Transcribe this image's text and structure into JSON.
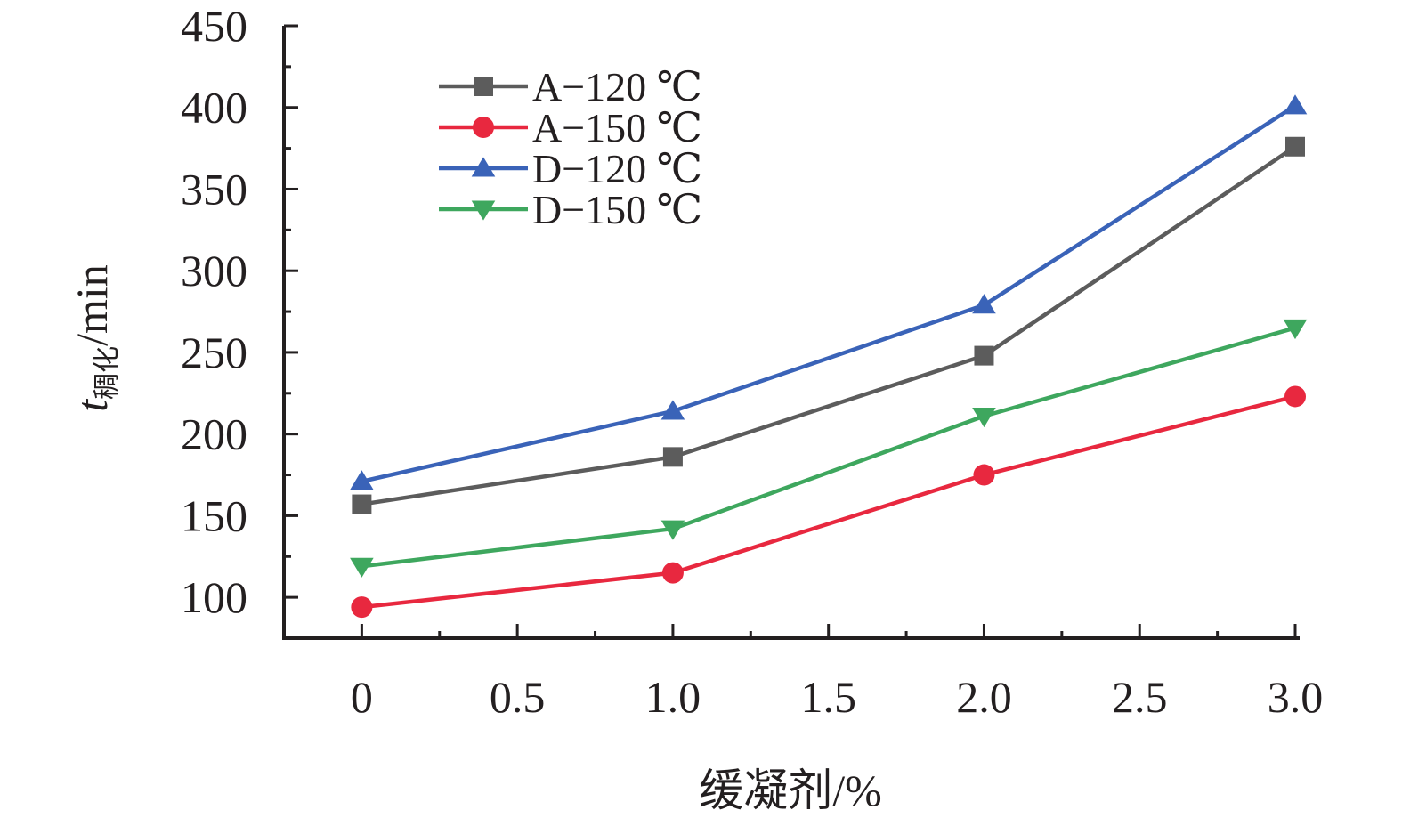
{
  "chart_data": {
    "type": "line",
    "x": [
      0,
      1.0,
      2.0,
      3.0
    ],
    "series": [
      {
        "name": "A−120 ℃",
        "color": "#5c5c5c",
        "marker": "square",
        "values": [
          157,
          186,
          248,
          376
        ]
      },
      {
        "name": "A−150 ℃",
        "color": "#e8283f",
        "marker": "circle",
        "values": [
          94,
          115,
          175,
          223
        ]
      },
      {
        "name": "D−120 ℃",
        "color": "#3a63b8",
        "marker": "triangle-up",
        "values": [
          171,
          214,
          279,
          401
        ]
      },
      {
        "name": "D−150 ℃",
        "color": "#3ea75e",
        "marker": "triangle-down",
        "values": [
          119,
          142,
          211,
          265
        ]
      }
    ],
    "xlabel": "缓凝剂/%",
    "ylabel": {
      "main": "t",
      "subscript": "稠化",
      "unit": "/min"
    },
    "xlim": [
      -0.25,
      3.0
    ],
    "ylim": [
      75,
      450
    ],
    "xticks": [
      {
        "value": 0,
        "label": "0"
      },
      {
        "value": 0.5,
        "label": "0.5"
      },
      {
        "value": 1.0,
        "label": "1.0"
      },
      {
        "value": 1.5,
        "label": "1.5"
      },
      {
        "value": 2.0,
        "label": "2.0"
      },
      {
        "value": 2.5,
        "label": "2.5"
      },
      {
        "value": 3.0,
        "label": "3.0"
      }
    ],
    "yticks": [
      {
        "value": 100,
        "label": "100"
      },
      {
        "value": 150,
        "label": "150"
      },
      {
        "value": 200,
        "label": "200"
      },
      {
        "value": 250,
        "label": "250"
      },
      {
        "value": 300,
        "label": "300"
      },
      {
        "value": 350,
        "label": "350"
      },
      {
        "value": 400,
        "label": "400"
      },
      {
        "value": 450,
        "label": "450"
      }
    ],
    "grid": false,
    "legend": "top-left"
  }
}
